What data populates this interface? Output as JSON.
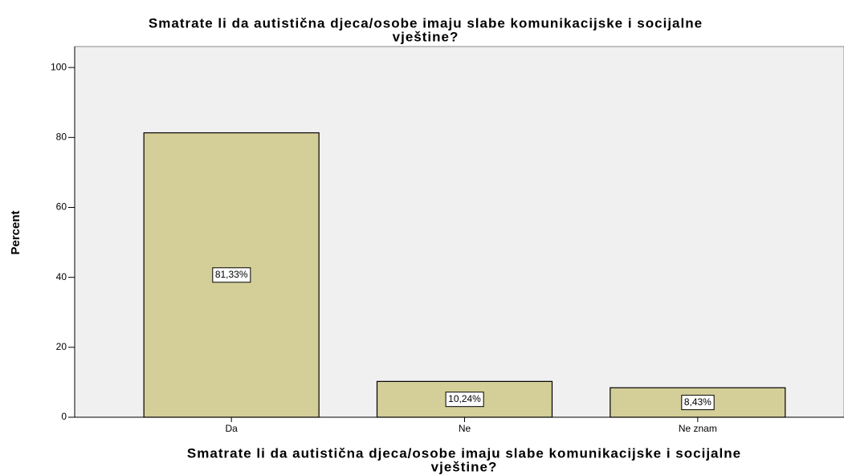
{
  "chart_data": {
    "type": "bar",
    "title": [
      "Smatrate li da autistična djeca/osobe imaju slabe komunikacijske i socijalne",
      "vještine?"
    ],
    "x_label": [
      "Smatrate li da autistična djeca/osobe imaju slabe komunikacijske i socijalne",
      "vještine?"
    ],
    "y_label": "Percent",
    "categories": [
      "Da",
      "Ne",
      "Ne znam"
    ],
    "values": [
      81.33,
      10.24,
      8.43
    ],
    "value_labels": [
      "81,33%",
      "10,24%",
      "8,43%"
    ],
    "color": "#d4cf98",
    "ylim": [
      0,
      106
    ],
    "yticks": [
      0,
      20,
      40,
      60,
      80,
      100
    ],
    "grid": false
  }
}
